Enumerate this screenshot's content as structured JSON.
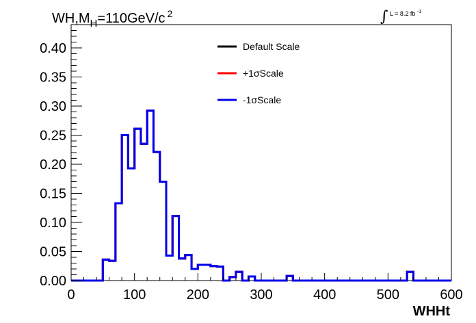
{
  "chart_data": {
    "type": "line",
    "title_parts": {
      "a": "WH,M",
      "sub": "H",
      "b": "=110GeV/c",
      "sup": "2"
    },
    "lumi_label": {
      "prefix": "L = 8.2 fb",
      "sup": "-1"
    },
    "xlabel": "WHHt",
    "ylabel": "",
    "xlim": [
      0,
      600
    ],
    "ylim": [
      0,
      0.44
    ],
    "x_ticks": [
      "0",
      "100",
      "200",
      "300",
      "400",
      "500",
      "600"
    ],
    "y_ticks": [
      "0.00",
      "0.05",
      "0.10",
      "0.15",
      "0.20",
      "0.25",
      "0.30",
      "0.35",
      "0.40"
    ],
    "legend_position": "top-right",
    "bin_edges": [
      0,
      10,
      20,
      30,
      40,
      50,
      60,
      70,
      80,
      90,
      100,
      110,
      120,
      130,
      140,
      150,
      160,
      170,
      180,
      190,
      200,
      210,
      220,
      230,
      240,
      250,
      260,
      270,
      280,
      290,
      300,
      310,
      320,
      330,
      340,
      350,
      360,
      370,
      380,
      390,
      400,
      410,
      420,
      430,
      440,
      450,
      460,
      470,
      480,
      490,
      500,
      510,
      520,
      530,
      540,
      550,
      560,
      570,
      580,
      590,
      600
    ],
    "series": [
      {
        "name": "Default Scale",
        "color": "#000000",
        "values": [
          0,
          0,
          0,
          0,
          0,
          0.036,
          0.034,
          0.133,
          0.25,
          0.193,
          0.261,
          0.235,
          0.292,
          0.221,
          0.17,
          0.043,
          0.111,
          0.038,
          0.044,
          0.02,
          0.027,
          0.027,
          0.025,
          0.024,
          0,
          0.006,
          0.015,
          0,
          0.007,
          0,
          0,
          0,
          0,
          0,
          0.008,
          0,
          0,
          0,
          0,
          0,
          0,
          0,
          0,
          0,
          0,
          0,
          0,
          0,
          0,
          0,
          0,
          0,
          0,
          0.015,
          0,
          0,
          0,
          0,
          0,
          0
        ]
      },
      {
        "name": "+1σScale",
        "color": "#ff0000",
        "values": [
          0,
          0,
          0,
          0,
          0,
          0.036,
          0.034,
          0.133,
          0.25,
          0.193,
          0.261,
          0.235,
          0.292,
          0.221,
          0.17,
          0.043,
          0.111,
          0.038,
          0.044,
          0.02,
          0.027,
          0.027,
          0.025,
          0.024,
          0,
          0.006,
          0.015,
          0,
          0.007,
          0,
          0,
          0,
          0,
          0,
          0.008,
          0,
          0,
          0,
          0,
          0,
          0,
          0,
          0,
          0,
          0,
          0,
          0,
          0,
          0,
          0,
          0,
          0,
          0,
          0.015,
          0,
          0,
          0,
          0,
          0,
          0
        ]
      },
      {
        "name": "-1σScale",
        "color": "#0000ee",
        "values": [
          0,
          0,
          0,
          0,
          0,
          0.036,
          0.034,
          0.133,
          0.25,
          0.193,
          0.261,
          0.235,
          0.292,
          0.221,
          0.17,
          0.043,
          0.111,
          0.038,
          0.044,
          0.02,
          0.027,
          0.027,
          0.025,
          0.024,
          0,
          0.006,
          0.015,
          0,
          0.007,
          0,
          0,
          0,
          0,
          0,
          0.008,
          0,
          0,
          0,
          0,
          0,
          0,
          0,
          0,
          0,
          0,
          0,
          0,
          0,
          0,
          0,
          0,
          0,
          0,
          0.015,
          0,
          0,
          0,
          0,
          0,
          0
        ]
      }
    ]
  }
}
